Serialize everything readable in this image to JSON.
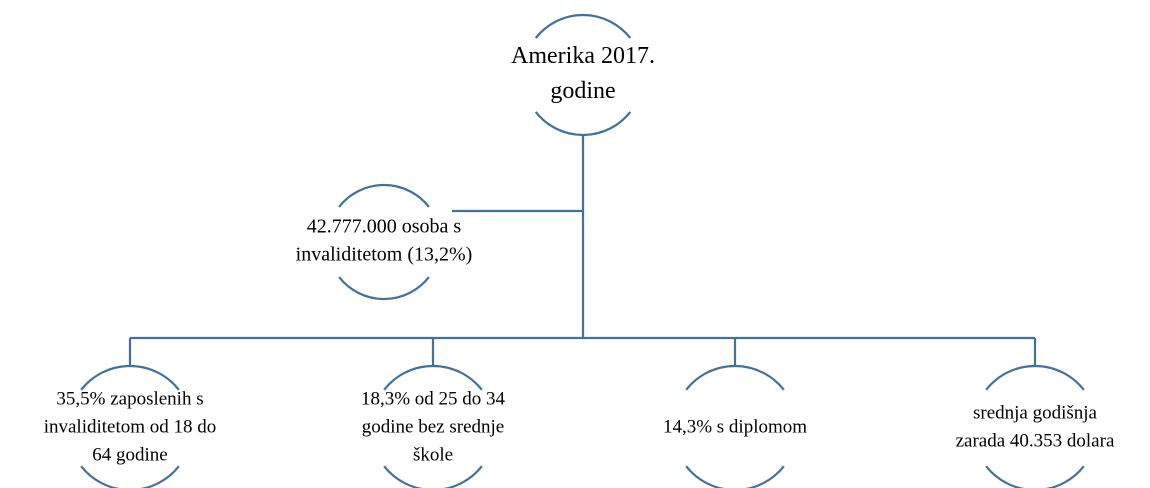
{
  "nodes": [
    {
      "label": [
        "Amerika 2017.",
        "godine"
      ]
    },
    {
      "label": [
        "42.777.000 osoba s",
        "invaliditetom (13,2%)"
      ]
    },
    {
      "label": [
        "35,5% zaposlenih s",
        "invaliditetom od 18 do",
        "64 godine"
      ]
    },
    {
      "label": [
        "18,3% od 25 do 34",
        "godine bez srednje",
        "škole"
      ]
    },
    {
      "label": [
        "14,3% s diplomom"
      ]
    },
    {
      "label": [
        "srednja godišnja",
        "zarada 40.353 dolara"
      ]
    }
  ]
}
